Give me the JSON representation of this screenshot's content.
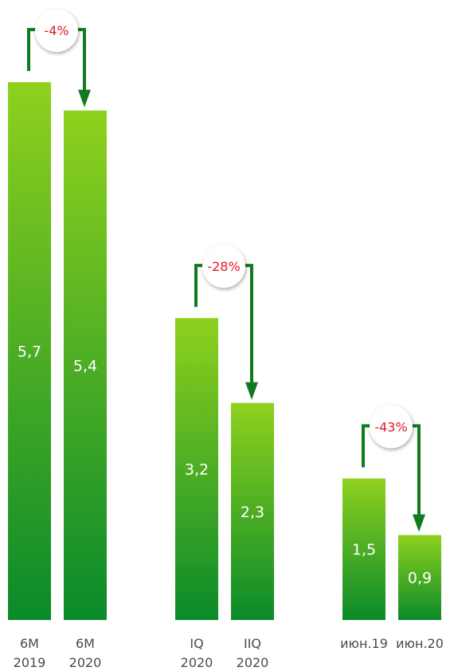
{
  "colors": {
    "bar_top": "#8fd11e",
    "bar_bottom": "#0a8a2a",
    "arrow": "#0f7a1e",
    "badge_text": "#e21b23",
    "badge_fill": "#ffffff",
    "tick_text": "#4a4a4a"
  },
  "chart_data": {
    "type": "bar",
    "title": "",
    "ylim": [
      0,
      6.5
    ],
    "grid": false,
    "categories": [
      [
        "6M",
        "2019"
      ],
      [
        "6M",
        "2020"
      ],
      [
        "IQ",
        "2020"
      ],
      [
        "IIQ",
        "2020"
      ],
      [
        "июн.19"
      ],
      [
        "июн.20"
      ]
    ],
    "values": [
      5.7,
      5.4,
      3.2,
      2.3,
      1.5,
      0.9
    ],
    "value_labels": [
      "5,7",
      "5,4",
      "3,2",
      "2,3",
      "1,5",
      "0,9"
    ],
    "changes": [
      {
        "from": 0,
        "to": 1,
        "label": "-4%"
      },
      {
        "from": 2,
        "to": 3,
        "label": "-28%"
      },
      {
        "from": 4,
        "to": 5,
        "label": "-43%"
      }
    ]
  }
}
